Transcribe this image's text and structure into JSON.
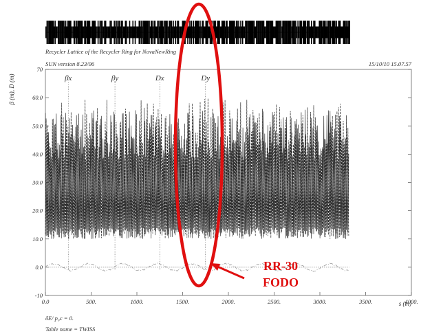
{
  "header": {
    "caption": "Recycler Lattice of the Recycler Ring for NovaNewRing",
    "version": "SUN version 8.23/06",
    "timestamp": "15/10/10  15.07.57"
  },
  "footer": {
    "dp_line": "δE/ p₀c  =  0.",
    "table_line": "Table name = TWISS"
  },
  "annotation": {
    "label_line1": "RR-30",
    "label_line2": "FODO",
    "color": "#e01010"
  },
  "chart_data": {
    "type": "line",
    "xlabel": "s (m)",
    "ylabel": "β (m), D (m)",
    "xlim": [
      0,
      4000
    ],
    "ylim": [
      -10,
      70
    ],
    "x_ticks": [
      0,
      500,
      1000,
      1500,
      2000,
      2500,
      3000,
      3500,
      4000
    ],
    "x_tick_labels": [
      "0.0",
      "500.",
      "1000.",
      "1500.",
      "2000.",
      "2500.",
      "3000.",
      "3500.",
      "4000."
    ],
    "y_ticks": [
      -10,
      0,
      10,
      20,
      30,
      40,
      50,
      60,
      70
    ],
    "y_tick_labels": [
      "-10",
      "0.0",
      "10.0",
      "20.0",
      "30.0",
      "40.0",
      "50.0",
      "60.0",
      "70"
    ],
    "s_range": [
      0,
      3320
    ],
    "series": [
      {
        "name": "βx",
        "label_x": 250,
        "baseline": 12,
        "amplitude_range": [
          38,
          56
        ],
        "style": "solid"
      },
      {
        "name": "βy",
        "label_x": 760,
        "baseline": 12,
        "amplitude_range": [
          38,
          60
        ],
        "style": "dashed"
      },
      {
        "name": "Dx",
        "label_x": 1250,
        "values_range": [
          -1.5,
          1.5
        ],
        "style": "dash-dot"
      },
      {
        "name": "Dy",
        "label_x": 1750,
        "values": 0,
        "style": "dotted"
      }
    ],
    "highlight_region": {
      "s_min": 1480,
      "s_max": 1900,
      "label": "RR-30 FODO"
    },
    "grid": false
  }
}
